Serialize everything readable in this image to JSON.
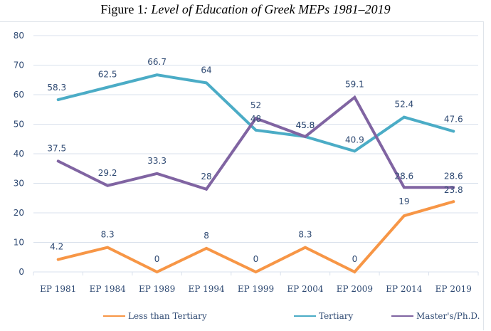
{
  "title": {
    "prefix": "Figure 1",
    "sep": ": ",
    "italic": "Level of Education of Greek MEPs 1981–2019"
  },
  "chart_data": {
    "type": "line",
    "title": "Figure 1: Level of Education of Greek MEPs 1981–2019",
    "xlabel": "",
    "ylabel": "",
    "ylim": [
      0,
      80
    ],
    "yticks": [
      0,
      10,
      20,
      30,
      40,
      50,
      60,
      70,
      80
    ],
    "grid": true,
    "legend_position": "bottom",
    "categories": [
      "EP 1981",
      "EP 1984",
      "EP 1989",
      "EP 1994",
      "EP 1999",
      "EP 2004",
      "EP 2009",
      "EP 2014",
      "EP 2019"
    ],
    "series": [
      {
        "name": "Less than Tertiary",
        "color": "#f79646",
        "values": [
          4.2,
          8.3,
          0,
          8,
          0,
          8.3,
          0,
          19,
          23.8
        ]
      },
      {
        "name": "Tertiary",
        "color": "#4bacc6",
        "values": [
          58.3,
          62.5,
          66.7,
          64,
          48,
          45.8,
          40.9,
          52.4,
          47.6
        ]
      },
      {
        "name": "Master's/Ph.D.",
        "color": "#8064a2",
        "values": [
          37.5,
          29.2,
          33.3,
          28,
          52,
          45.8,
          59.1,
          28.6,
          28.6
        ]
      }
    ]
  }
}
